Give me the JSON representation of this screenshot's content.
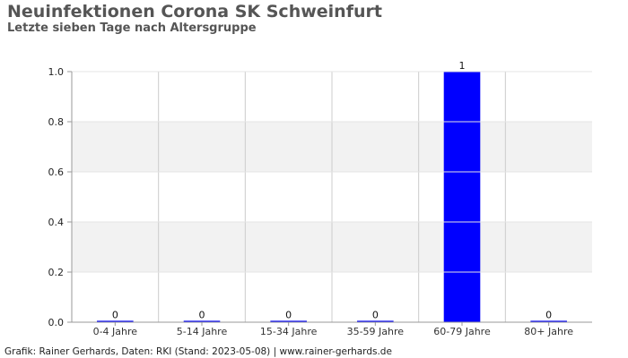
{
  "title": "Neuinfektionen Corona SK Schweinfurt",
  "subtitle": "Letzte sieben Tage nach Altersgruppe",
  "source": "Grafik: Rainer Gerhards, Daten: RKI (Stand: 2023-05-08) | www.rainer-gerhards.de",
  "chart_data": {
    "type": "bar",
    "categories": [
      "0-4 Jahre",
      "5-14 Jahre",
      "15-34 Jahre",
      "35-59 Jahre",
      "60-79 Jahre",
      "80+ Jahre"
    ],
    "values": [
      0,
      0,
      0,
      0,
      1,
      0
    ],
    "data_labels": [
      "0",
      "0",
      "0",
      "0",
      "1",
      "0"
    ],
    "ylim": [
      0,
      1
    ],
    "yticks": [
      "0.0",
      "0.2",
      "0.4",
      "0.6",
      "0.8",
      "1.0"
    ],
    "grid": true,
    "colors": {
      "bar": "#0000ff",
      "band": "#f2f2f2",
      "grid": "#cccccc"
    }
  }
}
